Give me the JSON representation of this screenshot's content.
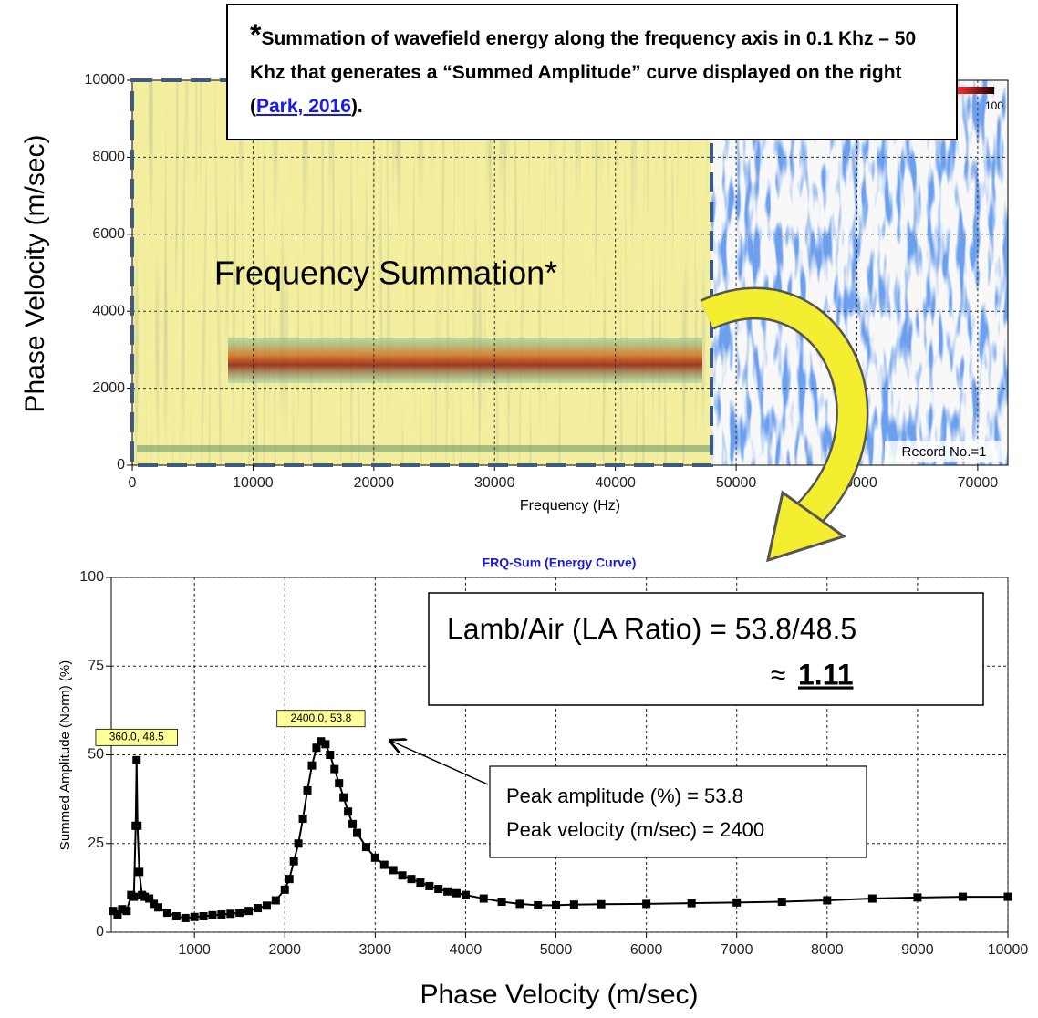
{
  "note": {
    "star": "*",
    "text": "Summation of wavefield energy along the frequency axis in 0.1 Khz – 50 Khz that generates a “Summed Amplitude” curve displayed on the right (",
    "link": "Park, 2016",
    "end": ")."
  },
  "chart_data": [
    {
      "type": "heatmap",
      "xlabel": "Frequency (Hz)",
      "ylabel": "Phase Velocity (m/sec)",
      "xlim": [
        0,
        72500
      ],
      "ylim": [
        0,
        10000
      ],
      "xticks": [
        0,
        10000,
        20000,
        30000,
        40000,
        50000,
        60000,
        70000
      ],
      "yticks": [
        0,
        2000,
        4000,
        6000,
        8000,
        10000
      ],
      "grid": true,
      "overlay_text": "Frequency Summation*",
      "record_label": "Record No.=1",
      "colorbar_max": 100
    },
    {
      "type": "line",
      "title": "FRQ-Sum (Energy Curve)",
      "xlabel": "Phase Velocity (m/sec)",
      "ylabel": "Summed Amplitude (Norm) (%)",
      "color": "#000000",
      "xlim": [
        80,
        10000
      ],
      "ylim": [
        0,
        100
      ],
      "xticks": [
        1000,
        2000,
        3000,
        4000,
        5000,
        6000,
        7000,
        8000,
        9000,
        10000
      ],
      "yticks": [
        0,
        25,
        50,
        75,
        100
      ],
      "grid": true,
      "x": [
        100,
        150,
        200,
        250,
        300,
        330,
        350,
        360,
        370,
        390,
        420,
        450,
        500,
        550,
        600,
        700,
        800,
        900,
        1000,
        1100,
        1200,
        1300,
        1400,
        1500,
        1600,
        1700,
        1800,
        1900,
        2000,
        2050,
        2100,
        2150,
        2200,
        2250,
        2300,
        2350,
        2400,
        2450,
        2500,
        2550,
        2600,
        2650,
        2700,
        2750,
        2800,
        2900,
        3000,
        3100,
        3200,
        3300,
        3400,
        3500,
        3600,
        3700,
        3800,
        3900,
        4000,
        4200,
        4400,
        4600,
        4800,
        5000,
        5200,
        5500,
        6000,
        6500,
        7000,
        7500,
        8000,
        8500,
        9000,
        9500,
        10000
      ],
      "values": [
        6,
        5,
        6.5,
        6,
        10.5,
        10,
        30,
        48.5,
        30,
        17,
        10.5,
        10,
        9.5,
        8,
        7,
        5.5,
        4.5,
        4,
        4.3,
        4.5,
        4.8,
        5,
        5.2,
        5.5,
        6,
        6.8,
        7.5,
        9,
        12,
        15,
        20,
        25,
        32,
        40,
        47,
        52,
        53.8,
        53,
        50,
        46,
        42,
        38,
        34,
        30.5,
        28,
        24,
        21,
        19,
        17.5,
        16,
        15,
        14,
        13,
        12.2,
        11.5,
        11,
        10.5,
        9.5,
        8.6,
        8,
        7.6,
        7.6,
        7.8,
        7.9,
        8,
        8.2,
        8.4,
        8.6,
        9,
        9.5,
        9.8,
        10,
        10
      ],
      "peak_labels": [
        {
          "x": 360,
          "y": 48.5,
          "label": "360.0,  48.5"
        },
        {
          "x": 2400,
          "y": 53.8,
          "label": "2400.0,  53.8"
        }
      ],
      "ratio_text": "Lamb/Air (LA Ratio)  = 53.8/48.5",
      "ratio_approx": "≈",
      "ratio_value": "1.11",
      "peak_text": [
        "Peak amplitude (%) = 53.8",
        "Peak velocity (m/sec) = 2400"
      ]
    }
  ]
}
